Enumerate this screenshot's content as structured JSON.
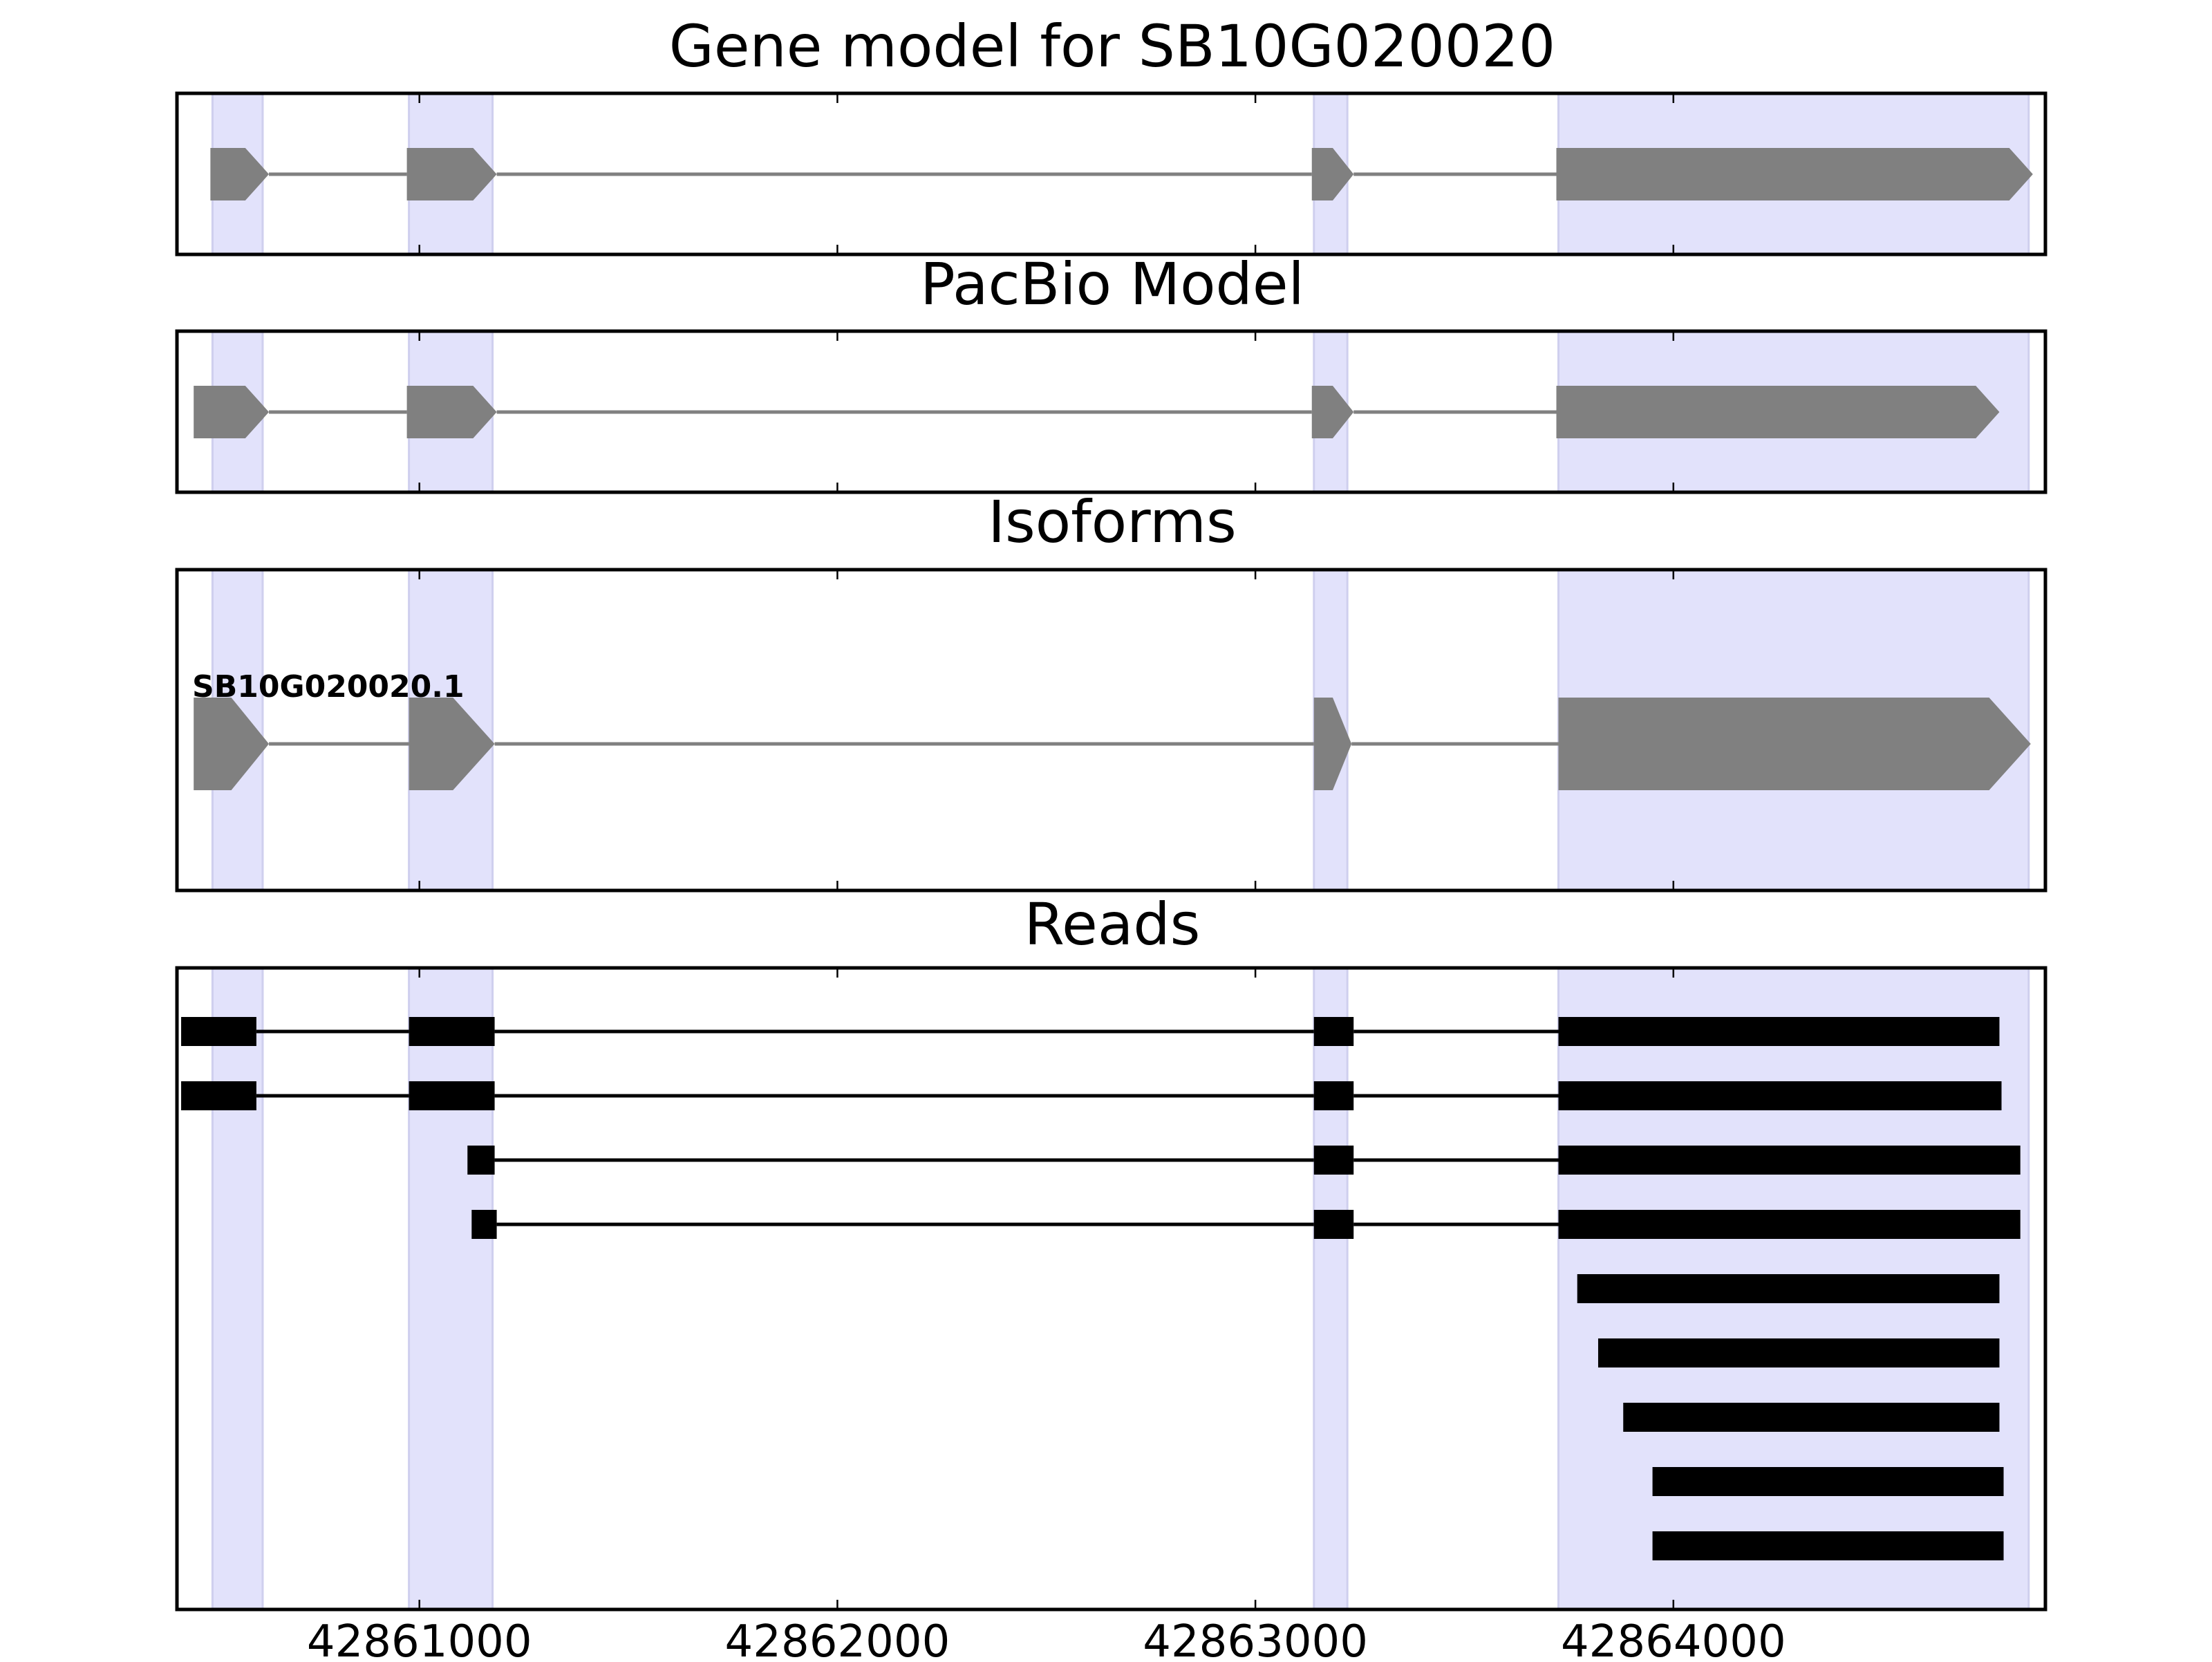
{
  "figure": {
    "x_ticks": [
      42861000,
      42862000,
      42863000,
      42864000
    ],
    "highlight_color": "#e2e2fb",
    "model_color": "#808080",
    "read_color": "#000000"
  },
  "exon_regions": [
    [
      42860505,
      42860625
    ],
    [
      42860975,
      42861175
    ],
    [
      42863140,
      42863220
    ],
    [
      42863725,
      42864850
    ]
  ],
  "panels": {
    "gene_model": {
      "title": "Gene model for SB10G020020",
      "features": [
        {
          "start": 42860500,
          "end": 42860640,
          "kind": "arrow"
        },
        {
          "start": 42860970,
          "end": 42861185,
          "kind": "arrow"
        },
        {
          "start": 42863135,
          "end": 42863235,
          "kind": "arrow"
        },
        {
          "start": 42863720,
          "end": 42864860,
          "kind": "arrow"
        }
      ]
    },
    "pacbio_model": {
      "title": "PacBio Model",
      "features": [
        {
          "start": 42860460,
          "end": 42860640,
          "kind": "arrow"
        },
        {
          "start": 42860970,
          "end": 42861185,
          "kind": "arrow"
        },
        {
          "start": 42863135,
          "end": 42863235,
          "kind": "arrow"
        },
        {
          "start": 42863720,
          "end": 42864780,
          "kind": "arrow"
        }
      ]
    },
    "isoforms": {
      "title": "Isoforms",
      "isoform_label": "SB10G020020.1",
      "features": [
        {
          "start": 42860460,
          "end": 42860640,
          "kind": "arrow"
        },
        {
          "start": 42860975,
          "end": 42861180,
          "kind": "arrow"
        },
        {
          "start": 42863140,
          "end": 42863230,
          "kind": "arrow"
        },
        {
          "start": 42863725,
          "end": 42864855,
          "kind": "arrow"
        }
      ]
    },
    "reads": {
      "title": "Reads",
      "reads": [
        {
          "blocks": [
            [
              42860430,
              42860610
            ],
            [
              42860975,
              42861180
            ],
            [
              42863140,
              42863235
            ],
            [
              42863725,
              42864780
            ]
          ]
        },
        {
          "blocks": [
            [
              42860430,
              42860610
            ],
            [
              42860975,
              42861180
            ],
            [
              42863140,
              42863235
            ],
            [
              42863725,
              42864785
            ]
          ]
        },
        {
          "blocks": [
            [
              42861115,
              42861180
            ],
            [
              42863140,
              42863235
            ],
            [
              42863725,
              42864830
            ]
          ]
        },
        {
          "blocks": [
            [
              42861125,
              42861185
            ],
            [
              42863140,
              42863235
            ],
            [
              42863725,
              42864830
            ]
          ]
        },
        {
          "blocks": [
            [
              42863770,
              42864780
            ]
          ]
        },
        {
          "blocks": [
            [
              42863820,
              42864780
            ]
          ]
        },
        {
          "blocks": [
            [
              42863880,
              42864780
            ]
          ]
        },
        {
          "blocks": [
            [
              42863950,
              42864790
            ]
          ]
        },
        {
          "blocks": [
            [
              42863950,
              42864790
            ]
          ]
        }
      ]
    }
  }
}
